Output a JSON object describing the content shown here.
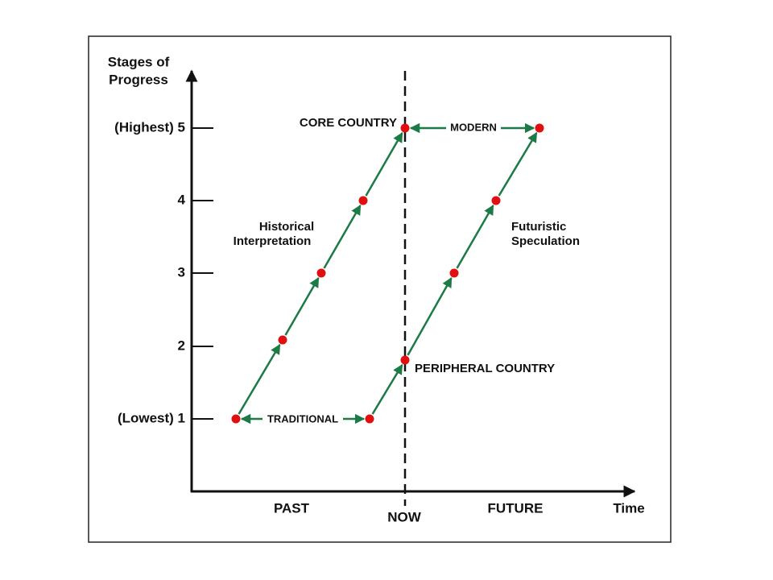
{
  "diagram": {
    "y_axis_title": [
      "Stages of",
      "Progress"
    ],
    "y_axis_labels": [
      "(Highest) 5",
      "4",
      "3",
      "2",
      "(Lowest) 1"
    ],
    "x_axis_labels": {
      "past": "PAST",
      "now": "NOW",
      "future": "FUTURE",
      "time": "Time"
    },
    "annotations": {
      "core_country": "CORE COUNTRY",
      "modern": "MODERN",
      "historical": [
        "Historical",
        "Interpretation"
      ],
      "futuristic": [
        "Futuristic",
        "Speculation"
      ],
      "peripheral_country": "PERIPHERAL COUNTRY",
      "traditional": "TRADITIONAL"
    }
  }
}
